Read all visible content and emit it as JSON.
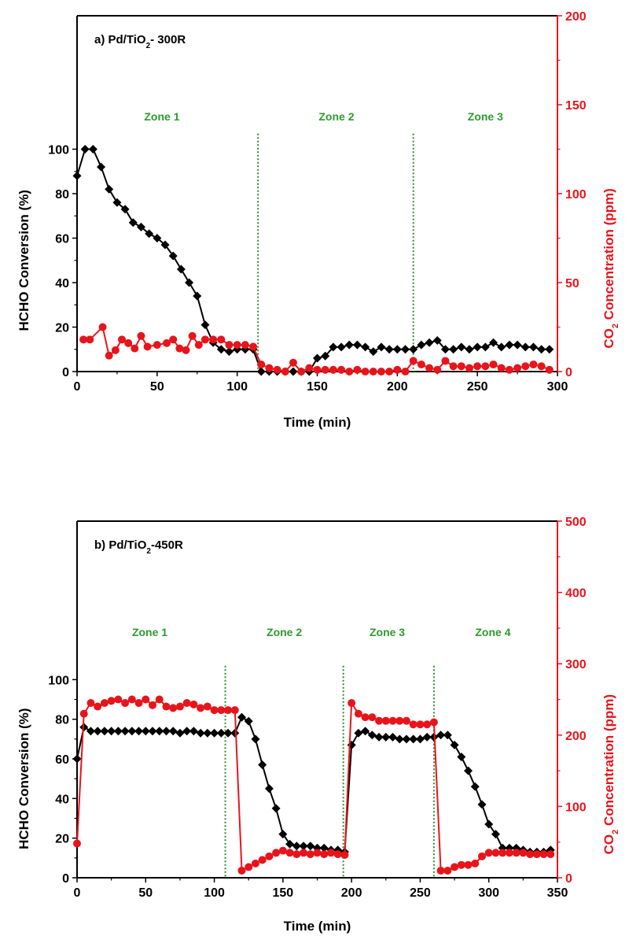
{
  "colors": {
    "conversion": "#000000",
    "co2": "#e8141b",
    "divider": "#2e8b2e",
    "zone_label": "#2e9a2e"
  },
  "chart_data": [
    {
      "type": "line",
      "title_prefix": "a) Pd/TiO",
      "title_sub": "2",
      "title_suffix": "- 300R",
      "xlabel": "Time (min)",
      "ylabel": "HCHO Conversion (%)",
      "y2label_prefix": "CO",
      "y2label_sub": "2",
      "y2label_suffix": " Concentration (ppm)",
      "xlim": [
        0,
        300
      ],
      "ylim": [
        0,
        160
      ],
      "y2lim": [
        0,
        200
      ],
      "xticks": [
        0,
        50,
        100,
        150,
        200,
        250,
        300
      ],
      "yticks": [
        0,
        20,
        40,
        60,
        80,
        100
      ],
      "y2ticks": [
        0,
        50,
        100,
        150,
        200
      ],
      "dividers": [
        113,
        210
      ],
      "zones": [
        {
          "label": "Zone 1",
          "x": 53
        },
        {
          "label": "Zone 2",
          "x": 162
        },
        {
          "label": "Zone 3",
          "x": 255
        }
      ],
      "zone_label_y": 113,
      "series": [
        {
          "name": "HCHO Conversion",
          "axis": "left",
          "marker": "diamond",
          "x": [
            0,
            5,
            10,
            15,
            20,
            25,
            30,
            35,
            40,
            45,
            50,
            55,
            60,
            65,
            70,
            75,
            80,
            85,
            90,
            95,
            100,
            105,
            110,
            115,
            120,
            125,
            130,
            135,
            140,
            145,
            150,
            155,
            160,
            165,
            170,
            175,
            180,
            185,
            190,
            195,
            200,
            205,
            210,
            215,
            220,
            225,
            230,
            235,
            240,
            245,
            250,
            255,
            260,
            265,
            270,
            275,
            280,
            285,
            290,
            295
          ],
          "values": [
            88,
            100,
            100,
            92,
            82,
            76,
            73,
            67,
            65,
            62,
            60,
            57,
            52,
            46,
            40,
            34,
            21,
            13,
            10,
            9,
            10,
            10,
            10,
            0,
            0,
            0,
            0,
            0,
            0,
            0,
            6,
            7,
            11,
            11,
            12,
            12,
            11,
            9,
            11,
            10,
            10,
            10,
            10,
            12,
            13,
            14,
            10,
            10,
            11,
            10,
            11,
            11,
            13,
            11,
            12,
            12,
            11,
            11,
            10,
            10
          ]
        },
        {
          "name": "CO2 Concentration",
          "axis": "right",
          "marker": "circle",
          "x": [
            4,
            8,
            16,
            20,
            24,
            28,
            32,
            36,
            40,
            44,
            50,
            56,
            60,
            64,
            68,
            72,
            76,
            80,
            85,
            90,
            95,
            100,
            105,
            110,
            115,
            120,
            125,
            130,
            135,
            140,
            145,
            150,
            155,
            160,
            165,
            170,
            175,
            180,
            185,
            190,
            195,
            200,
            205,
            210,
            215,
            220,
            225,
            230,
            235,
            240,
            245,
            250,
            255,
            260,
            265,
            270,
            275,
            280,
            285,
            290,
            295
          ],
          "values": [
            18,
            18,
            25,
            9,
            12,
            18,
            16,
            13,
            20,
            14,
            15,
            16,
            18,
            13,
            12,
            20,
            15,
            18,
            18,
            18,
            15,
            15,
            15,
            14,
            4,
            2,
            1,
            0,
            5,
            0,
            2,
            1,
            1,
            1,
            1,
            0,
            1,
            0,
            0,
            0,
            0,
            1,
            0,
            6,
            4,
            2,
            1,
            6,
            3,
            3,
            2,
            3,
            3,
            4,
            2,
            1,
            2,
            3,
            4,
            3,
            1
          ]
        }
      ]
    },
    {
      "type": "line",
      "title_prefix": "b) Pd/TiO",
      "title_sub": "2",
      "title_suffix": "-450R",
      "xlabel": "Time (min)",
      "ylabel": "HCHO Conversion (%)",
      "y2label_prefix": "CO",
      "y2label_sub": "2",
      "y2label_suffix": " Concentration (ppm)",
      "xlim": [
        0,
        350
      ],
      "ylim": [
        0,
        180
      ],
      "y2lim": [
        0,
        500
      ],
      "xticks": [
        0,
        50,
        100,
        150,
        200,
        250,
        300,
        350
      ],
      "yticks": [
        0,
        20,
        40,
        60,
        80,
        100
      ],
      "y2ticks": [
        0,
        100,
        200,
        300,
        400,
        500
      ],
      "dividers": [
        108,
        194,
        260
      ],
      "zones": [
        {
          "label": "Zone 1",
          "x": 53
        },
        {
          "label": "Zone 2",
          "x": 151
        },
        {
          "label": "Zone 3",
          "x": 226
        },
        {
          "label": "Zone 4",
          "x": 303
        }
      ],
      "zone_label_y": 122,
      "series": [
        {
          "name": "HCHO Conversion",
          "axis": "left",
          "marker": "diamond",
          "x": [
            0,
            5,
            10,
            15,
            20,
            25,
            30,
            35,
            40,
            45,
            50,
            55,
            60,
            65,
            70,
            75,
            80,
            85,
            90,
            95,
            100,
            105,
            110,
            115,
            120,
            125,
            130,
            135,
            140,
            145,
            150,
            155,
            160,
            165,
            170,
            175,
            180,
            185,
            190,
            195,
            200,
            205,
            210,
            215,
            220,
            225,
            230,
            235,
            240,
            245,
            250,
            255,
            260,
            265,
            270,
            275,
            280,
            285,
            290,
            295,
            300,
            305,
            310,
            315,
            320,
            325,
            330,
            335,
            340,
            345
          ],
          "values": [
            60,
            76,
            74,
            74,
            74,
            74,
            74,
            74,
            74,
            74,
            74,
            74,
            74,
            74,
            74,
            73,
            74,
            74,
            73,
            73,
            73,
            73,
            73,
            73,
            81,
            79,
            70,
            57,
            45,
            35,
            22,
            17,
            16,
            16,
            16,
            15,
            15,
            14,
            14,
            13,
            67,
            73,
            74,
            72,
            71,
            71,
            71,
            70,
            70,
            70,
            70,
            71,
            71,
            72,
            72,
            67,
            61,
            54,
            46,
            37,
            27,
            22,
            15,
            15,
            15,
            14,
            13,
            13,
            13,
            14
          ]
        },
        {
          "name": "CO2 Concentration",
          "axis": "right",
          "marker": "circle",
          "x": [
            0,
            5,
            10,
            15,
            20,
            25,
            30,
            35,
            40,
            45,
            50,
            55,
            60,
            65,
            70,
            75,
            80,
            85,
            90,
            95,
            100,
            105,
            110,
            115,
            120,
            125,
            130,
            135,
            140,
            145,
            150,
            155,
            160,
            165,
            170,
            175,
            180,
            185,
            190,
            195,
            200,
            205,
            210,
            215,
            220,
            225,
            230,
            235,
            240,
            245,
            250,
            255,
            260,
            265,
            270,
            275,
            280,
            285,
            290,
            295,
            300,
            305,
            310,
            315,
            320,
            325,
            330,
            335,
            340,
            345
          ],
          "values": [
            48,
            230,
            245,
            240,
            245,
            248,
            250,
            245,
            250,
            245,
            250,
            242,
            250,
            240,
            238,
            240,
            245,
            243,
            238,
            240,
            235,
            235,
            235,
            235,
            10,
            15,
            20,
            25,
            30,
            35,
            38,
            35,
            33,
            35,
            33,
            35,
            33,
            35,
            33,
            32,
            245,
            230,
            225,
            225,
            220,
            220,
            220,
            220,
            220,
            215,
            215,
            215,
            218,
            10,
            10,
            15,
            18,
            18,
            20,
            30,
            35,
            35,
            35,
            35,
            35,
            35,
            33,
            33,
            33,
            33
          ]
        }
      ]
    }
  ]
}
